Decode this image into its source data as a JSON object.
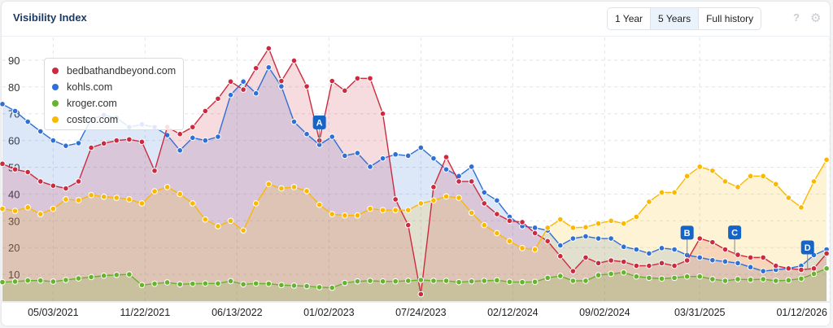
{
  "header": {
    "title": "Visibility Index",
    "range_buttons": [
      "1 Year",
      "5 Years",
      "Full history"
    ],
    "active_range": "5 Years",
    "help_icon": "question-icon",
    "settings_icon": "gear-icon"
  },
  "chart_data": {
    "type": "area",
    "title": "Visibility Index",
    "xlabel": "",
    "ylabel": "",
    "xlim": [
      "2021-01-11",
      "2026-01-12"
    ],
    "ylim": [
      0,
      97
    ],
    "yticks": [
      10,
      20,
      30,
      40,
      50,
      60,
      70,
      80,
      90
    ],
    "xtick_labels": [
      "05/03/2021",
      "11/22/2021",
      "06/13/2022",
      "01/02/2023",
      "07/24/2023",
      "02/12/2024",
      "09/02/2024",
      "03/31/2025",
      "01/12/2026"
    ],
    "xtick_dates": [
      "2021-05-03",
      "2021-11-22",
      "2022-06-13",
      "2023-01-02",
      "2023-07-24",
      "2024-02-12",
      "2024-09-02",
      "2025-03-31",
      "2026-01-12"
    ],
    "grid": true,
    "legend_position": "top-left",
    "x": [
      "2021-01-11",
      "2021-02-08",
      "2021-03-08",
      "2021-04-05",
      "2021-05-03",
      "2021-05-31",
      "2021-06-28",
      "2021-07-26",
      "2021-08-23",
      "2021-09-20",
      "2021-10-18",
      "2021-11-15",
      "2021-12-13",
      "2022-01-10",
      "2022-02-07",
      "2022-03-07",
      "2022-04-04",
      "2022-05-02",
      "2022-05-30",
      "2022-06-27",
      "2022-07-25",
      "2022-08-22",
      "2022-09-19",
      "2022-10-17",
      "2022-11-14",
      "2022-12-12",
      "2023-01-09",
      "2023-02-06",
      "2023-03-06",
      "2023-04-03",
      "2023-05-01",
      "2023-05-29",
      "2023-06-26",
      "2023-07-24",
      "2023-08-21",
      "2023-09-18",
      "2023-10-16",
      "2023-11-13",
      "2023-12-11",
      "2024-01-08",
      "2024-02-05",
      "2024-03-04",
      "2024-04-01",
      "2024-04-29",
      "2024-05-27",
      "2024-06-24",
      "2024-07-22",
      "2024-08-19",
      "2024-09-16",
      "2024-10-14",
      "2024-11-11",
      "2024-12-09",
      "2025-01-06",
      "2025-02-03",
      "2025-03-03",
      "2025-03-31",
      "2025-04-28",
      "2025-05-26",
      "2025-06-23",
      "2025-07-21",
      "2025-08-18",
      "2025-09-15",
      "2025-10-13",
      "2025-11-10",
      "2025-12-08",
      "2026-01-05"
    ],
    "series": [
      {
        "name": "bedbathandbeyond.com",
        "color": "#cc2b3f",
        "values": [
          51.3,
          49.2,
          48.2,
          44.7,
          43.1,
          42.1,
          44.7,
          57.3,
          58.9,
          60,
          60.4,
          59.5,
          48.7,
          65,
          62.4,
          65,
          71,
          75.6,
          82,
          79,
          87,
          94.4,
          82.2,
          89.8,
          80.2,
          60,
          82.2,
          78.6,
          83.2,
          83.2,
          70,
          38,
          28.4,
          2.6,
          42.6,
          53.8,
          44.7,
          44.7,
          36.5,
          32.5,
          30,
          29.5,
          25.4,
          22.4,
          16.8,
          11.2,
          16.3,
          14.2,
          15.2,
          14.7,
          13.2,
          13.2,
          14.2,
          13.2,
          15.2,
          23.4,
          22,
          19.3,
          17.3,
          16.3,
          16.3,
          13.2,
          12.2,
          11.7,
          12.2,
          17.8
        ]
      },
      {
        "name": "kohls.com",
        "color": "#2f6fd6",
        "values": [
          73.6,
          71,
          67,
          63.4,
          60,
          58,
          59,
          68,
          69.5,
          68.5,
          65,
          66,
          65,
          62,
          56.3,
          61,
          60,
          61.4,
          77,
          82,
          77.6,
          87.3,
          80.2,
          67,
          62.4,
          58.4,
          61.4,
          54.3,
          55.3,
          50.2,
          53.3,
          54.8,
          54.3,
          57.3,
          53.3,
          49.2,
          46.7,
          50.2,
          40.6,
          37.6,
          31.5,
          28,
          27.4,
          26.4,
          20.8,
          23.4,
          24.2,
          23.4,
          23.4,
          20.3,
          19.3,
          17.8,
          19.8,
          19.3,
          17.2,
          16.3,
          15.3,
          14.8,
          14.2,
          12.7,
          11.2,
          11.7,
          12.2,
          13.2,
          17.2,
          19.3
        ]
      },
      {
        "name": "kroger.com",
        "color": "#66b32e",
        "values": [
          7.1,
          7.3,
          7.7,
          7.7,
          7.3,
          7.9,
          8.5,
          9,
          9.5,
          9.8,
          10,
          6,
          6.5,
          7,
          6.3,
          6.5,
          6.6,
          6.6,
          7.5,
          6.3,
          6.6,
          6.5,
          6,
          5.8,
          5.6,
          5.2,
          5,
          6.8,
          7.4,
          7.6,
          7.4,
          7.4,
          7.6,
          7.9,
          7.6,
          7.6,
          7.1,
          7.4,
          7.6,
          7.8,
          7.2,
          7.1,
          7.2,
          8.7,
          9.4,
          7.6,
          7.6,
          9.7,
          10.2,
          10.7,
          9.2,
          8.7,
          8.4,
          8.7,
          9.2,
          9.2,
          8.2,
          7.6,
          8.2,
          8,
          8.2,
          7.6,
          7.8,
          8.4,
          10.2,
          12.2
        ]
      },
      {
        "name": "costco.com",
        "color": "#fbb800",
        "values": [
          34.5,
          33.7,
          35,
          32.5,
          34.5,
          38,
          37.7,
          39.6,
          39,
          38.6,
          38,
          36.5,
          41,
          42.6,
          40,
          36.5,
          30.5,
          28,
          30,
          26.4,
          36.5,
          43.7,
          42.1,
          42.6,
          41.1,
          36,
          32.5,
          32,
          32,
          34.5,
          34,
          34,
          34,
          36.5,
          37.6,
          39.1,
          38.6,
          33,
          28.4,
          25.4,
          22.4,
          19.8,
          19.3,
          27.4,
          30.5,
          27.4,
          27.6,
          29,
          30,
          29,
          31.5,
          37.1,
          40.6,
          40.6,
          46.7,
          50.2,
          48.7,
          44.7,
          42.6,
          46.7,
          46.7,
          43.7,
          38.6,
          35,
          44.7,
          52.8
        ]
      }
    ],
    "annotations": [
      {
        "label": "A",
        "date": "2022-12-12",
        "series": "kohls.com"
      },
      {
        "label": "B",
        "date": "2025-03-03",
        "series": "kohls.com"
      },
      {
        "label": "C",
        "date": "2025-06-16",
        "series": "bedbathandbeyond.com"
      },
      {
        "label": "D",
        "date": "2025-11-24",
        "series": "bedbathandbeyond.com"
      }
    ]
  }
}
